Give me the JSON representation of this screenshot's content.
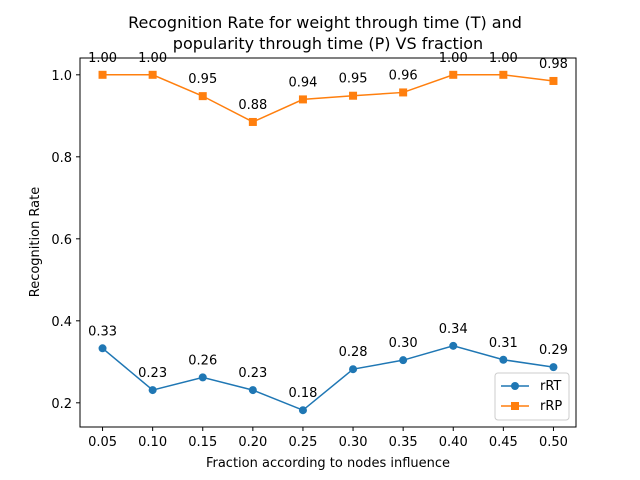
{
  "chart_data": {
    "type": "line",
    "title_lines": [
      "Recognition Rate for weight through time (T) and",
      "popularity through time (P) VS fraction"
    ],
    "xlabel": "Fraction according to nodes influence",
    "ylabel": "Recognition Rate",
    "x": [
      0.05,
      0.1,
      0.15,
      0.2,
      0.25,
      0.3,
      0.35,
      0.4,
      0.45,
      0.5
    ],
    "x_tick_labels": [
      "0.05",
      "0.10",
      "0.15",
      "0.20",
      "0.25",
      "0.30",
      "0.35",
      "0.40",
      "0.45",
      "0.50"
    ],
    "y_ticks": [
      0.2,
      0.4,
      0.6,
      0.8,
      1.0
    ],
    "y_tick_labels": [
      "0.2",
      "0.4",
      "0.6",
      "0.8",
      "1.0"
    ],
    "xlim": [
      0.0275,
      0.5225
    ],
    "ylim": [
      0.141,
      1.041
    ],
    "grid": false,
    "legend_position": "lower right",
    "series": [
      {
        "name": "rRT",
        "color": "#1f77b4",
        "marker": "circle",
        "values": [
          0.333,
          0.231,
          0.262,
          0.231,
          0.182,
          0.282,
          0.304,
          0.339,
          0.305,
          0.287
        ],
        "labels": [
          "0.33",
          "0.23",
          "0.26",
          "0.23",
          "0.18",
          "0.28",
          "0.30",
          "0.34",
          "0.31",
          "0.29"
        ]
      },
      {
        "name": "rRP",
        "color": "#ff7f0e",
        "marker": "square",
        "values": [
          1.0,
          1.0,
          0.948,
          0.885,
          0.94,
          0.949,
          0.957,
          1.0,
          1.0,
          0.985
        ],
        "labels": [
          "1.00",
          "1.00",
          "0.95",
          "0.88",
          "0.94",
          "0.95",
          "0.96",
          "1.00",
          "1.00",
          "0.98"
        ]
      }
    ]
  }
}
